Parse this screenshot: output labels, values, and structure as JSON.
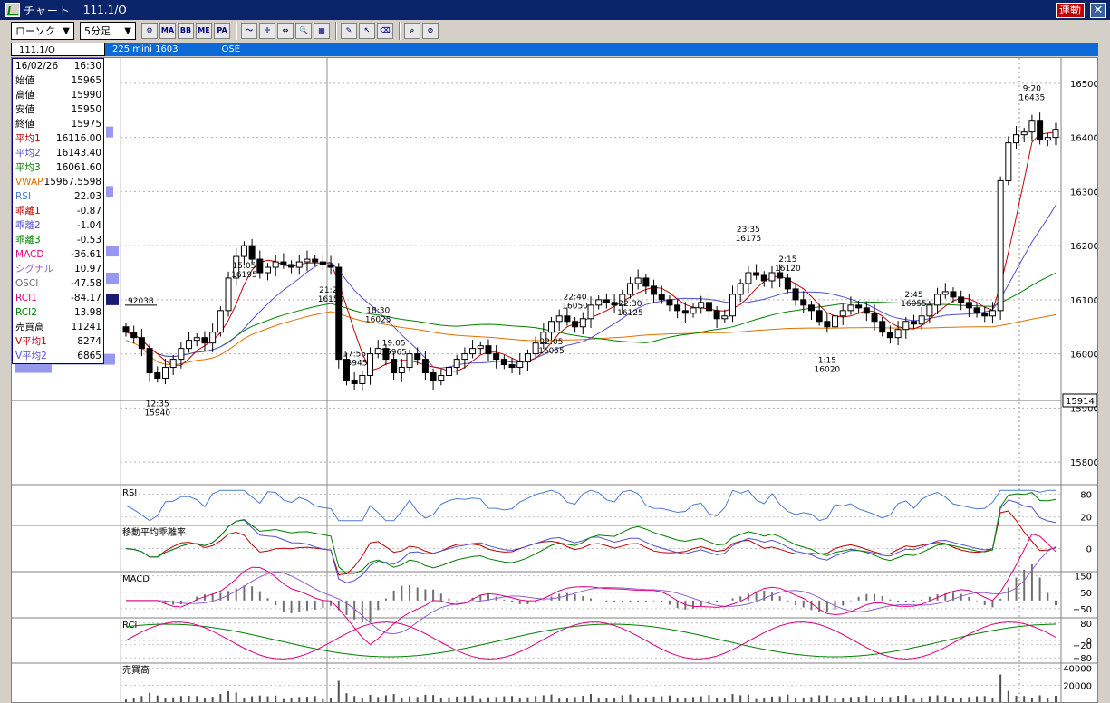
{
  "window": {
    "title": "チャート",
    "symbol": "111.1/O",
    "link_label": "連動",
    "close_icon": "close-icon"
  },
  "toolbar": {
    "chart_type": "ローソク",
    "interval": "5分足",
    "icons": [
      {
        "name": "chart-settings-icon",
        "glyph": "⚙"
      },
      {
        "name": "ma-indicator-icon",
        "glyph": "MA"
      },
      {
        "name": "bb-indicator-icon",
        "glyph": "BB"
      },
      {
        "name": "mme-indicator-icon",
        "glyph": "ME"
      },
      {
        "name": "pa-indicator-icon",
        "glyph": "PA"
      },
      {
        "name": "line-tool-icon",
        "glyph": "〜"
      },
      {
        "name": "crosshair-icon",
        "glyph": "✛"
      },
      {
        "name": "scroll-icon",
        "glyph": "⇔"
      },
      {
        "name": "zoom-icon",
        "glyph": "🔍"
      },
      {
        "name": "grid-icon",
        "glyph": "▦"
      },
      {
        "name": "pen-icon",
        "glyph": "✎"
      },
      {
        "name": "cursor-icon",
        "glyph": "↖"
      },
      {
        "name": "eraser-icon",
        "glyph": "⌫"
      },
      {
        "name": "search-icon",
        "glyph": "⌕"
      },
      {
        "name": "clear-icon",
        "glyph": "⊘"
      }
    ]
  },
  "infobar": {
    "symbol": "111.1/O",
    "name": "225 mini 1603",
    "exchange": "OSE"
  },
  "data_panel": {
    "date": "16/02/26",
    "time": "16:30",
    "rows": [
      {
        "label": "始値",
        "value": "15965",
        "color": "#000000"
      },
      {
        "label": "高値",
        "value": "15990",
        "color": "#000000"
      },
      {
        "label": "安値",
        "value": "15950",
        "color": "#000000"
      },
      {
        "label": "終値",
        "value": "15975",
        "color": "#000000"
      },
      {
        "label": "平均1",
        "value": "16116.00",
        "color": "#c00000"
      },
      {
        "label": "平均2",
        "value": "16143.40",
        "color": "#5050d0"
      },
      {
        "label": "平均3",
        "value": "16061.60",
        "color": "#008000"
      },
      {
        "label": "VWAP",
        "value": "15967.5598",
        "color": "#e07000"
      },
      {
        "label": "RSI",
        "value": "22.03",
        "color": "#4a7ad0"
      },
      {
        "label": "乖離1",
        "value": "-0.87",
        "color": "#c00000"
      },
      {
        "label": "乖離2",
        "value": "-1.04",
        "color": "#5050d0"
      },
      {
        "label": "乖離3",
        "value": "-0.53",
        "color": "#008000"
      },
      {
        "label": "MACD",
        "value": "-36.61",
        "color": "#e0007a"
      },
      {
        "label": "シグナル",
        "value": "10.97",
        "color": "#9060d0"
      },
      {
        "label": "OSCI",
        "value": "-47.58",
        "color": "#707070"
      },
      {
        "label": "RCI1",
        "value": "-84.17",
        "color": "#e0007a"
      },
      {
        "label": "RCI2",
        "value": "13.98",
        "color": "#008000"
      },
      {
        "label": "売買高",
        "value": "11241",
        "color": "#000000"
      },
      {
        "label": "V平均1",
        "value": "8274",
        "color": "#c00000"
      },
      {
        "label": "V平均2",
        "value": "6865",
        "color": "#5050d0"
      }
    ]
  },
  "chart_data": [
    {
      "type": "candlestick",
      "title": "",
      "price_axis_ticks": [
        "16500",
        "16400",
        "16300",
        "16200",
        "16100",
        "16000",
        "15900",
        "15800"
      ],
      "ylim": [
        15760,
        16540
      ],
      "current_price_label": "15914",
      "reference_label": "92038",
      "annotations": [
        {
          "time": "12:35",
          "price": "15940"
        },
        {
          "time": "15:05",
          "price": "16195"
        },
        {
          "time": "17:55",
          "price": "15945"
        },
        {
          "time": "18:30",
          "price": "16025"
        },
        {
          "time": "19:05",
          "price": "15965"
        },
        {
          "time": "21:20",
          "price": "16150"
        },
        {
          "time": "22:05",
          "price": "16055"
        },
        {
          "time": "22:30",
          "price": "16125"
        },
        {
          "time": "22:40",
          "price": "16050"
        },
        {
          "time": "23:35",
          "price": "16175"
        },
        {
          "time": "1:15",
          "price": "16020"
        },
        {
          "time": "2:15",
          "price": "16120"
        },
        {
          "time": "2:45",
          "price": "16055"
        },
        {
          "time": "9:20",
          "price": "16435"
        }
      ],
      "closes": [
        16040,
        16030,
        16010,
        15965,
        15955,
        15975,
        15990,
        16010,
        16025,
        16030,
        16020,
        16040,
        16080,
        16140,
        16180,
        16200,
        16175,
        16150,
        16160,
        16170,
        16165,
        16160,
        16170,
        16175,
        16170,
        16165,
        16160,
        15990,
        15950,
        15945,
        15960,
        16000,
        16010,
        15990,
        15965,
        15975,
        16000,
        15990,
        15965,
        15950,
        15960,
        15975,
        15990,
        16000,
        16010,
        16015,
        16000,
        15990,
        15980,
        15975,
        15985,
        16000,
        16020,
        16040,
        16060,
        16070,
        16060,
        16050,
        16065,
        16090,
        16100,
        16095,
        16090,
        16110,
        16130,
        16140,
        16125,
        16110,
        16100,
        16090,
        16080,
        16075,
        16085,
        16095,
        16080,
        16065,
        16070,
        16110,
        16130,
        16150,
        16145,
        16135,
        16150,
        16140,
        16120,
        16100,
        16090,
        16080,
        16060,
        16050,
        16070,
        16080,
        16090,
        16085,
        16075,
        16060,
        16040,
        16030,
        16045,
        16060,
        16055,
        16070,
        16090,
        16110,
        16115,
        16105,
        16095,
        16085,
        16075,
        16070,
        16080,
        16320,
        16390,
        16405,
        16410,
        16430,
        16395,
        16400,
        16415
      ]
    },
    {
      "type": "line",
      "title": "RSI",
      "ticks": [
        "80",
        "20"
      ],
      "ylim": [
        0,
        100
      ]
    },
    {
      "type": "line",
      "title": "移動平均乖離率",
      "ticks": [
        "0"
      ],
      "ylim": [
        -3,
        3
      ]
    },
    {
      "type": "line",
      "title": "MACD",
      "ticks": [
        "150",
        "50",
        "−50"
      ],
      "ylim": [
        -100,
        170
      ]
    },
    {
      "type": "line",
      "title": "RCI",
      "ticks": [
        "80",
        "0",
        "−20",
        "−80"
      ],
      "ylim": [
        -100,
        100
      ]
    },
    {
      "type": "bar",
      "title": "売買高",
      "ticks": [
        "40000",
        "20000"
      ],
      "ylim": [
        0,
        45000
      ]
    }
  ]
}
